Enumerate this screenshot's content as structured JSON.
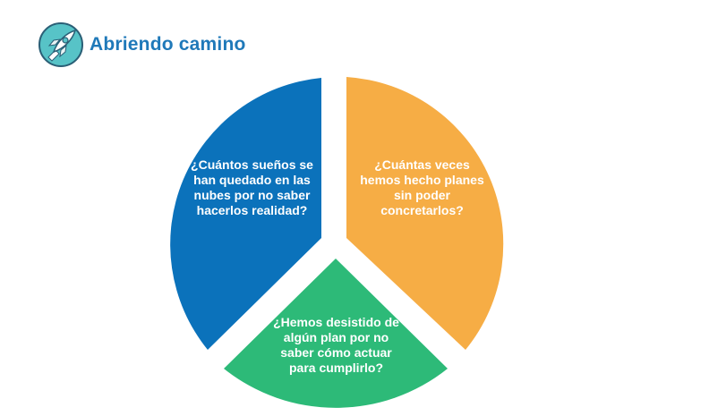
{
  "header": {
    "title": "Abriendo camino",
    "logo_icon": "rocket-icon"
  },
  "segments": [
    {
      "text": "¿Cuántos sueños se han quedado en las nubes por no saber hacerlos realidad?",
      "color": "#0b72bb"
    },
    {
      "text": "¿Cuántas veces hemos hecho planes sin poder concretarlos?",
      "color": "#f6ad45"
    },
    {
      "text": "¿Hemos desistido de algún plan por no saber cómo actuar para cumplirlo?",
      "color": "#2dba78"
    }
  ]
}
